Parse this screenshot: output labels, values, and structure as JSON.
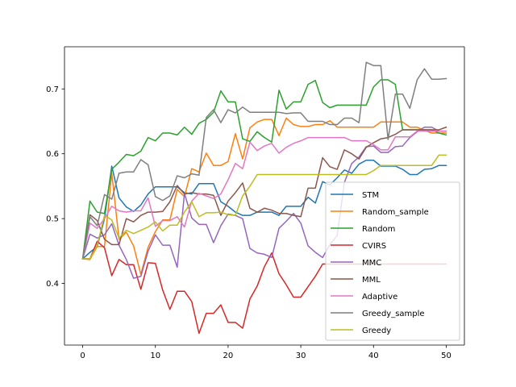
{
  "chart_data": {
    "type": "line",
    "title": "",
    "xlabel": "",
    "ylabel": "",
    "xlim": [
      -2.5,
      52.5
    ],
    "ylim": [
      0.305,
      0.765
    ],
    "x_ticks": [
      0,
      10,
      20,
      30,
      40,
      50
    ],
    "y_ticks": [
      0.4,
      0.5,
      0.6,
      0.7
    ],
    "x_tick_labels": [
      "0",
      "10",
      "20",
      "30",
      "40",
      "50"
    ],
    "y_tick_labels": [
      "0.4",
      "0.5",
      "0.6",
      "0.7"
    ],
    "grid": false,
    "legend_position": "lower-right",
    "x": [
      0,
      1,
      2,
      3,
      4,
      5,
      6,
      7,
      8,
      9,
      10,
      11,
      12,
      13,
      14,
      15,
      16,
      17,
      18,
      19,
      20,
      21,
      22,
      23,
      24,
      25,
      26,
      27,
      28,
      29,
      30,
      31,
      32,
      33,
      34,
      35,
      36,
      37,
      38,
      39,
      40,
      41,
      42,
      43,
      44,
      45,
      46,
      47,
      48,
      49,
      50
    ],
    "series": [
      {
        "name": "STM",
        "color": "#1f77b4",
        "values": [
          0.438,
          0.448,
          0.457,
          0.5,
          0.581,
          0.532,
          0.518,
          0.511,
          0.521,
          0.538,
          0.549,
          0.549,
          0.549,
          0.549,
          0.54,
          0.538,
          0.554,
          0.554,
          0.554,
          0.526,
          0.519,
          0.51,
          0.505,
          0.505,
          0.51,
          0.51,
          0.51,
          0.505,
          0.519,
          0.519,
          0.519,
          0.533,
          0.524,
          0.557,
          0.552,
          0.563,
          0.575,
          0.57,
          0.584,
          0.59,
          0.59,
          0.581,
          0.581,
          0.581,
          0.576,
          0.568,
          0.568,
          0.576,
          0.577,
          0.582,
          0.582
        ]
      },
      {
        "name": "Random_sample",
        "color": "#ff7f0e",
        "values": [
          0.438,
          0.437,
          0.457,
          0.457,
          0.57,
          0.468,
          0.479,
          0.458,
          0.414,
          0.456,
          0.48,
          0.498,
          0.498,
          0.545,
          0.534,
          0.577,
          0.572,
          0.601,
          0.582,
          0.582,
          0.588,
          0.631,
          0.592,
          0.64,
          0.649,
          0.653,
          0.653,
          0.628,
          0.655,
          0.645,
          0.642,
          0.642,
          0.645,
          0.645,
          0.651,
          0.641,
          0.641,
          0.641,
          0.641,
          0.641,
          0.641,
          0.649,
          0.649,
          0.649,
          0.649,
          0.641,
          0.641,
          0.636,
          0.632,
          0.632,
          0.632
        ]
      },
      {
        "name": "Random",
        "color": "#2ca02c",
        "values": [
          0.438,
          0.527,
          0.51,
          0.508,
          0.576,
          0.587,
          0.599,
          0.597,
          0.604,
          0.625,
          0.62,
          0.632,
          0.632,
          0.629,
          0.641,
          0.63,
          0.647,
          0.653,
          0.664,
          0.697,
          0.68,
          0.68,
          0.623,
          0.619,
          0.634,
          0.625,
          0.618,
          0.698,
          0.669,
          0.68,
          0.68,
          0.707,
          0.713,
          0.679,
          0.671,
          0.675,
          0.675,
          0.675,
          0.675,
          0.675,
          0.703,
          0.714,
          0.714,
          0.707,
          0.637,
          0.637,
          0.637,
          0.637,
          0.637,
          0.632,
          0.629
        ]
      },
      {
        "name": "CVIRS",
        "color": "#d62728",
        "values": [
          0.438,
          0.438,
          0.465,
          0.455,
          0.412,
          0.437,
          0.429,
          0.429,
          0.391,
          0.432,
          0.431,
          0.39,
          0.36,
          0.388,
          0.388,
          0.372,
          0.323,
          0.354,
          0.354,
          0.367,
          0.34,
          0.34,
          0.331,
          0.376,
          0.396,
          0.426,
          0.447,
          0.415,
          0.398,
          0.379,
          0.379,
          0.395,
          0.411,
          0.43,
          0.43,
          0.43,
          0.43,
          0.43,
          0.43,
          0.43,
          0.43,
          0.43,
          0.43,
          0.43,
          0.43,
          0.43,
          0.43,
          0.43,
          0.43,
          0.43,
          0.43
        ]
      },
      {
        "name": "MMC",
        "color": "#9467bd",
        "values": [
          0.438,
          0.476,
          0.47,
          0.475,
          0.492,
          0.459,
          0.437,
          0.408,
          0.411,
          0.45,
          0.475,
          0.459,
          0.459,
          0.425,
          0.539,
          0.501,
          0.491,
          0.491,
          0.463,
          0.489,
          0.507,
          0.505,
          0.5,
          0.454,
          0.447,
          0.445,
          0.44,
          0.485,
          0.496,
          0.508,
          0.493,
          0.458,
          0.448,
          0.44,
          0.46,
          0.474,
          0.556,
          0.585,
          0.595,
          0.611,
          0.612,
          0.602,
          0.602,
          0.611,
          0.612,
          0.625,
          0.634,
          0.641,
          0.641,
          0.635,
          0.635
        ]
      },
      {
        "name": "MML",
        "color": "#8c564b",
        "values": [
          0.438,
          0.506,
          0.497,
          0.468,
          0.46,
          0.46,
          0.5,
          0.495,
          0.505,
          0.51,
          0.51,
          0.511,
          0.526,
          0.551,
          0.538,
          0.54,
          0.538,
          0.538,
          0.536,
          0.505,
          0.527,
          0.54,
          0.555,
          0.516,
          0.51,
          0.516,
          0.513,
          0.508,
          0.508,
          0.505,
          0.503,
          0.547,
          0.547,
          0.594,
          0.58,
          0.576,
          0.606,
          0.6,
          0.592,
          0.61,
          0.617,
          0.623,
          0.625,
          0.63,
          0.637,
          0.637,
          0.637,
          0.637,
          0.637,
          0.637,
          0.641
        ]
      },
      {
        "name": "Adaptive",
        "color": "#e377c2",
        "values": [
          0.438,
          0.493,
          0.485,
          0.5,
          0.519,
          0.512,
          0.51,
          0.512,
          0.512,
          0.532,
          0.488,
          0.497,
          0.497,
          0.503,
          0.487,
          0.527,
          0.539,
          0.535,
          0.531,
          0.538,
          0.56,
          0.585,
          0.577,
          0.618,
          0.605,
          0.612,
          0.616,
          0.601,
          0.61,
          0.616,
          0.62,
          0.625,
          0.625,
          0.625,
          0.625,
          0.625,
          0.625,
          0.62,
          0.62,
          0.62,
          0.614,
          0.606,
          0.606,
          0.626,
          0.626,
          0.626,
          0.635,
          0.635,
          0.635,
          0.635,
          0.635
        ]
      },
      {
        "name": "Greedy_sample",
        "color": "#7f7f7f",
        "values": [
          0.438,
          0.503,
          0.489,
          0.537,
          0.53,
          0.57,
          0.572,
          0.572,
          0.591,
          0.583,
          0.534,
          0.528,
          0.535,
          0.566,
          0.563,
          0.569,
          0.567,
          0.656,
          0.668,
          0.648,
          0.668,
          0.663,
          0.672,
          0.664,
          0.664,
          0.664,
          0.664,
          0.664,
          0.662,
          0.663,
          0.663,
          0.65,
          0.65,
          0.65,
          0.645,
          0.645,
          0.655,
          0.655,
          0.648,
          0.741,
          0.736,
          0.736,
          0.622,
          0.692,
          0.692,
          0.67,
          0.714,
          0.731,
          0.715,
          0.715,
          0.716
        ]
      },
      {
        "name": "Greedy",
        "color": "#bcbd22",
        "values": [
          0.438,
          0.438,
          0.459,
          0.505,
          0.498,
          0.47,
          0.482,
          0.477,
          0.482,
          0.487,
          0.495,
          0.481,
          0.49,
          0.49,
          0.51,
          0.526,
          0.503,
          0.509,
          0.509,
          0.51,
          0.506,
          0.505,
          0.535,
          0.55,
          0.568,
          0.568,
          0.568,
          0.568,
          0.568,
          0.568,
          0.568,
          0.568,
          0.568,
          0.568,
          0.568,
          0.568,
          0.568,
          0.568,
          0.568,
          0.568,
          0.574,
          0.582,
          0.582,
          0.582,
          0.582,
          0.582,
          0.582,
          0.582,
          0.582,
          0.598,
          0.598
        ]
      }
    ]
  }
}
